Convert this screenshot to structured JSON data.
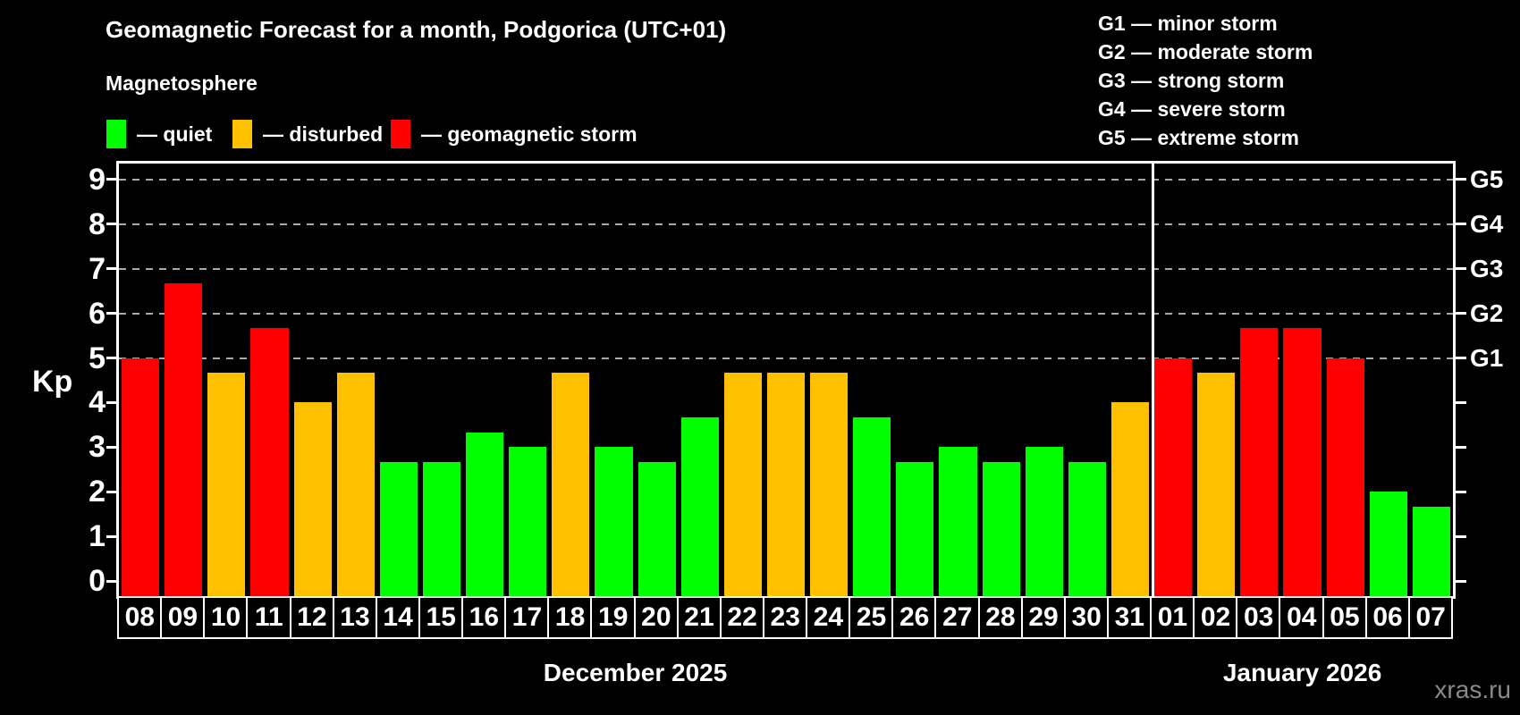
{
  "header": {
    "title": "Geomagnetic Forecast for a month, Podgorica (UTC+01)",
    "subtitle": "Magnetosphere"
  },
  "legend": {
    "items": [
      {
        "dash": "—",
        "label": "quiet",
        "status": "quiet"
      },
      {
        "dash": "—",
        "label": "disturbed",
        "status": "disturbed"
      },
      {
        "dash": "—",
        "label": "geomagnetic storm",
        "status": "storm"
      }
    ]
  },
  "gscale": {
    "dash": "—",
    "items": [
      {
        "code": "G1",
        "desc": "minor storm"
      },
      {
        "code": "G2",
        "desc": "moderate storm"
      },
      {
        "code": "G3",
        "desc": "strong storm"
      },
      {
        "code": "G4",
        "desc": "severe storm"
      },
      {
        "code": "G5",
        "desc": "extreme storm"
      }
    ]
  },
  "watermark": "xras.ru",
  "chart_data": {
    "type": "bar",
    "title": "Geomagnetic Forecast for a month, Podgorica (UTC+01)",
    "ylabel": "Kp",
    "ylim": [
      0,
      9
    ],
    "yticks": [
      0,
      1,
      2,
      3,
      4,
      5,
      6,
      7,
      8,
      9
    ],
    "grid_kp_levels": [
      5,
      6,
      7,
      8,
      9
    ],
    "right_axis": [
      {
        "kp": 5,
        "label": "G1"
      },
      {
        "kp": 6,
        "label": "G2"
      },
      {
        "kp": 7,
        "label": "G3"
      },
      {
        "kp": 8,
        "label": "G4"
      },
      {
        "kp": 9,
        "label": "G5"
      }
    ],
    "colors": {
      "quiet": "#00ff00",
      "disturbed": "#ffc000",
      "storm": "#ff0000"
    },
    "months": [
      {
        "label": "December 2025",
        "days": [
          {
            "day": "08",
            "kp": 5.0,
            "status": "storm"
          },
          {
            "day": "09",
            "kp": 6.67,
            "status": "storm"
          },
          {
            "day": "10",
            "kp": 4.67,
            "status": "disturbed"
          },
          {
            "day": "11",
            "kp": 5.67,
            "status": "storm"
          },
          {
            "day": "12",
            "kp": 4.0,
            "status": "disturbed"
          },
          {
            "day": "13",
            "kp": 4.67,
            "status": "disturbed"
          },
          {
            "day": "14",
            "kp": 2.67,
            "status": "quiet"
          },
          {
            "day": "15",
            "kp": 2.67,
            "status": "quiet"
          },
          {
            "day": "16",
            "kp": 3.33,
            "status": "quiet"
          },
          {
            "day": "17",
            "kp": 3.0,
            "status": "quiet"
          },
          {
            "day": "18",
            "kp": 4.67,
            "status": "disturbed"
          },
          {
            "day": "19",
            "kp": 3.0,
            "status": "quiet"
          },
          {
            "day": "20",
            "kp": 2.67,
            "status": "quiet"
          },
          {
            "day": "21",
            "kp": 3.67,
            "status": "quiet"
          },
          {
            "day": "22",
            "kp": 4.67,
            "status": "disturbed"
          },
          {
            "day": "23",
            "kp": 4.67,
            "status": "disturbed"
          },
          {
            "day": "24",
            "kp": 4.67,
            "status": "disturbed"
          },
          {
            "day": "25",
            "kp": 3.67,
            "status": "quiet"
          },
          {
            "day": "26",
            "kp": 2.67,
            "status": "quiet"
          },
          {
            "day": "27",
            "kp": 3.0,
            "status": "quiet"
          },
          {
            "day": "28",
            "kp": 2.67,
            "status": "quiet"
          },
          {
            "day": "29",
            "kp": 3.0,
            "status": "quiet"
          },
          {
            "day": "30",
            "kp": 2.67,
            "status": "quiet"
          },
          {
            "day": "31",
            "kp": 4.0,
            "status": "disturbed"
          }
        ]
      },
      {
        "label": "January 2026",
        "days": [
          {
            "day": "01",
            "kp": 5.0,
            "status": "storm"
          },
          {
            "day": "02",
            "kp": 4.67,
            "status": "disturbed"
          },
          {
            "day": "03",
            "kp": 5.67,
            "status": "storm"
          },
          {
            "day": "04",
            "kp": 5.67,
            "status": "storm"
          },
          {
            "day": "05",
            "kp": 5.0,
            "status": "storm"
          },
          {
            "day": "06",
            "kp": 2.0,
            "status": "quiet"
          },
          {
            "day": "07",
            "kp": 1.67,
            "status": "quiet"
          }
        ]
      }
    ]
  }
}
